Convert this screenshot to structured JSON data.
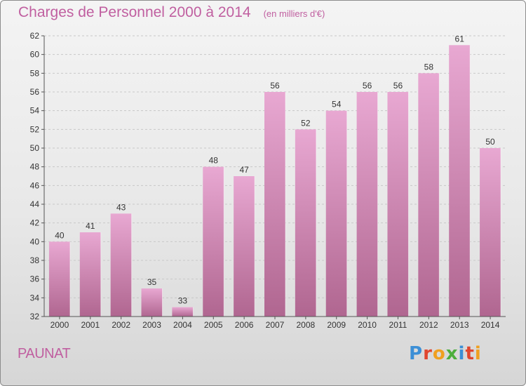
{
  "header": {
    "title": "Charges de Personnel 2000 à 2014",
    "subtitle": "(en milliers d'€)"
  },
  "footer": {
    "town": "PAUNAT",
    "logo_text": "Proxiti",
    "logo_colors": [
      "#3c8fd6",
      "#e0462f",
      "#f0a020",
      "#4cae3c",
      "#3c8fd6",
      "#e0462f",
      "#f0a020"
    ]
  },
  "colors": {
    "bar_top": "#e8a8d2",
    "bar_bottom": "#b06690",
    "grid": "#c8c8c8",
    "axis": "#555555",
    "text": "#333333",
    "title": "#c05fa0"
  },
  "chart_data": {
    "type": "bar",
    "categories": [
      "2000",
      "2001",
      "2002",
      "2003",
      "2004",
      "2005",
      "2006",
      "2007",
      "2008",
      "2009",
      "2010",
      "2011",
      "2012",
      "2013",
      "2014"
    ],
    "values": [
      40,
      41,
      43,
      35,
      33,
      48,
      47,
      56,
      52,
      54,
      56,
      56,
      58,
      61,
      50
    ],
    "ylim": [
      32,
      62
    ],
    "yticks": [
      32,
      34,
      36,
      38,
      40,
      42,
      44,
      46,
      48,
      50,
      52,
      54,
      56,
      58,
      60,
      62
    ],
    "grid": true,
    "title": "Charges de Personnel 2000 à 2014",
    "xlabel": "",
    "ylabel": ""
  }
}
